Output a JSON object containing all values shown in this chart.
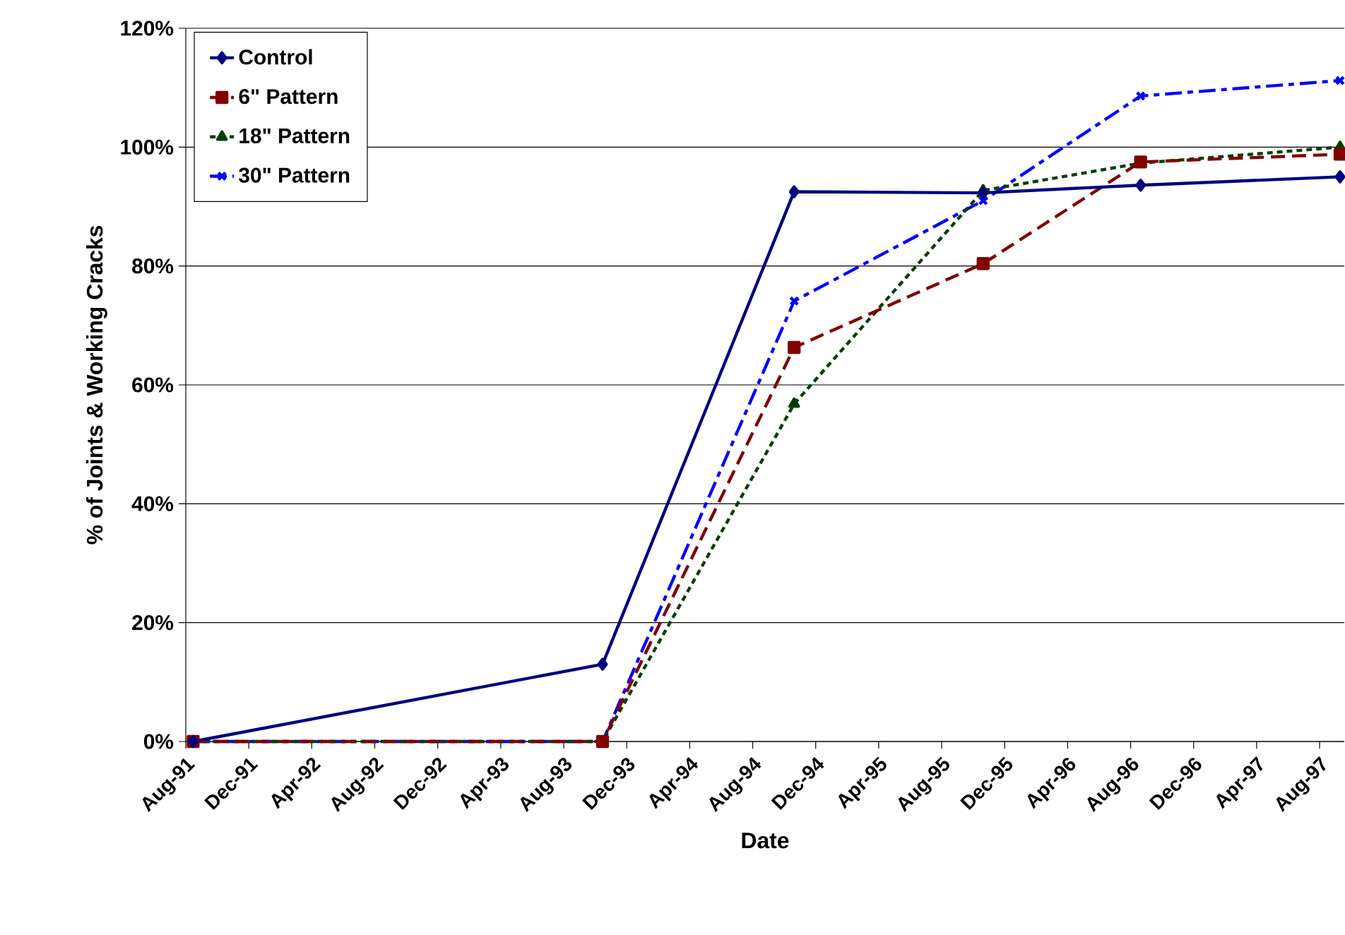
{
  "chart_data": {
    "type": "line",
    "xlabel": "Date",
    "ylabel": "% of Joints & Working Cracks",
    "x": [
      "1991-08-15",
      "1993-10-15",
      "1994-10-20",
      "1995-10-20",
      "1996-08-20",
      "1997-09-10"
    ],
    "series": [
      {
        "name": "Control",
        "color": "#000080",
        "marker": "diamond",
        "line_style": "solid",
        "values": [
          0,
          13,
          92.5,
          92.3,
          93.6,
          95
        ]
      },
      {
        "name": "6\" Pattern",
        "color": "#800000",
        "marker": "square",
        "line_style": "dashed",
        "values": [
          0,
          0,
          66.3,
          80.4,
          97.5,
          98.8
        ]
      },
      {
        "name": "18\" Pattern",
        "color": "#004000",
        "marker": "triangle",
        "line_style": "dotted",
        "values": [
          0,
          0,
          56.8,
          92.7,
          97.3,
          100
        ]
      },
      {
        "name": "30\" Pattern",
        "color": "#0000ff",
        "marker": "cross",
        "line_style": "dashdot",
        "values": [
          0,
          0,
          74.1,
          91,
          108.6,
          111.2
        ]
      }
    ],
    "xlim": [
      "1991-08-01",
      "1997-09-18"
    ],
    "xticks": [
      {
        "value": "1991-08",
        "label": "Aug-91"
      },
      {
        "value": "1991-12",
        "label": "Dec-91"
      },
      {
        "value": "1992-04",
        "label": "Apr-92"
      },
      {
        "value": "1992-08",
        "label": "Aug-92"
      },
      {
        "value": "1992-12",
        "label": "Dec-92"
      },
      {
        "value": "1993-04",
        "label": "Apr-93"
      },
      {
        "value": "1993-08",
        "label": "Aug-93"
      },
      {
        "value": "1993-12",
        "label": "Dec-93"
      },
      {
        "value": "1994-04",
        "label": "Apr-94"
      },
      {
        "value": "1994-08",
        "label": "Aug-94"
      },
      {
        "value": "1994-12",
        "label": "Dec-94"
      },
      {
        "value": "1995-04",
        "label": "Apr-95"
      },
      {
        "value": "1995-08",
        "label": "Aug-95"
      },
      {
        "value": "1995-12",
        "label": "Dec-95"
      },
      {
        "value": "1996-04",
        "label": "Apr-96"
      },
      {
        "value": "1996-08",
        "label": "Aug-96"
      },
      {
        "value": "1996-12",
        "label": "Dec-96"
      },
      {
        "value": "1997-04",
        "label": "Apr-97"
      },
      {
        "value": "1997-08",
        "label": "Aug-97"
      }
    ],
    "ylim": [
      0,
      120
    ],
    "yticks": [
      {
        "value": 0,
        "label": "0%"
      },
      {
        "value": 20,
        "label": "20%"
      },
      {
        "value": 40,
        "label": "40%"
      },
      {
        "value": 60,
        "label": "60%"
      },
      {
        "value": 80,
        "label": "80%"
      },
      {
        "value": 100,
        "label": "100%"
      },
      {
        "value": 120,
        "label": "120%"
      }
    ],
    "grid": "y",
    "legend": "top left"
  }
}
